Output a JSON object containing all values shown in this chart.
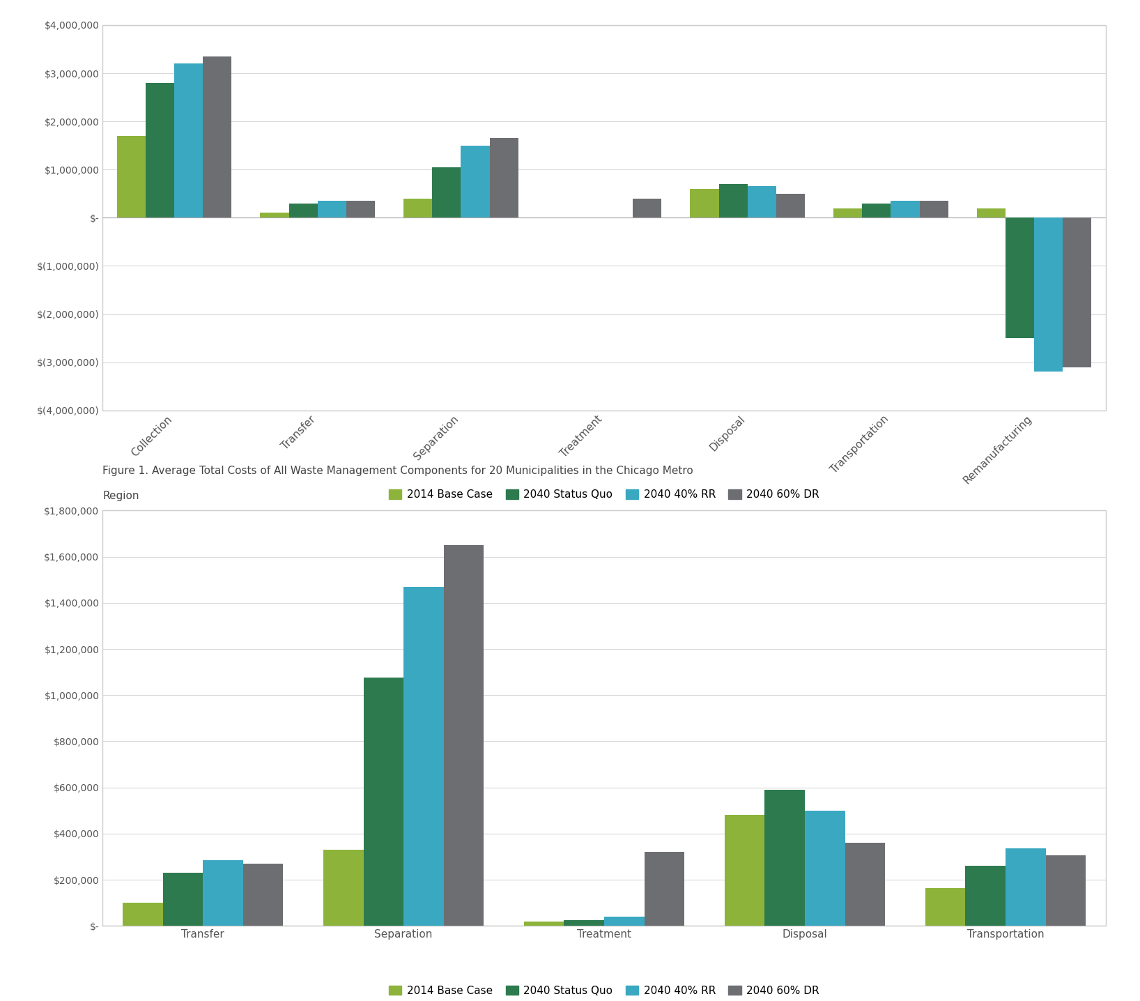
{
  "chart1": {
    "categories": [
      "Collection",
      "Transfer",
      "Separation",
      "Treatment",
      "Disposal",
      "Transportation",
      "Remanufacturing"
    ],
    "series": {
      "2014 Base Case": [
        1700000,
        100000,
        400000,
        0,
        600000,
        200000,
        200000
      ],
      "2040 Status Quo": [
        2800000,
        300000,
        1050000,
        0,
        700000,
        300000,
        -2500000
      ],
      "2040 40% RR": [
        3200000,
        350000,
        1500000,
        0,
        650000,
        350000,
        -3200000
      ],
      "2040 60% DR": [
        3350000,
        350000,
        1650000,
        400000,
        500000,
        350000,
        -3100000
      ]
    },
    "ylim": [
      -4000000,
      4000000
    ],
    "yticks": [
      -4000000,
      -3000000,
      -2000000,
      -1000000,
      0,
      1000000,
      2000000,
      3000000,
      4000000
    ]
  },
  "chart2": {
    "categories": [
      "Transfer",
      "Separation",
      "Treatment",
      "Disposal",
      "Transportation"
    ],
    "series": {
      "2014 Base Case": [
        100000,
        330000,
        20000,
        480000,
        165000
      ],
      "2040 Status Quo": [
        230000,
        1075000,
        25000,
        590000,
        260000
      ],
      "2040 40% RR": [
        285000,
        1470000,
        40000,
        500000,
        335000
      ],
      "2040 60% DR": [
        270000,
        1650000,
        320000,
        360000,
        305000
      ]
    },
    "ylim": [
      0,
      1800000
    ],
    "yticks": [
      0,
      200000,
      400000,
      600000,
      800000,
      1000000,
      1200000,
      1400000,
      1600000,
      1800000
    ]
  },
  "colors": {
    "2014 Base Case": "#8db33a",
    "2040 Status Quo": "#2d7a4f",
    "2040 40% RR": "#3aa8c1",
    "2040 60% DR": "#6d6e71"
  },
  "legend_order": [
    "2014 Base Case",
    "2040 Status Quo",
    "2040 40% RR",
    "2040 60% DR"
  ],
  "caption_line1": "Figure 1. Average Total Costs of All Waste Management Components for 20 Municipalities in the Chicago Metro",
  "caption_line2": "Region",
  "background_color": "#ffffff",
  "plot_bg_color": "#ffffff",
  "grid_color": "#d9d9d9",
  "bar_width": 0.2
}
